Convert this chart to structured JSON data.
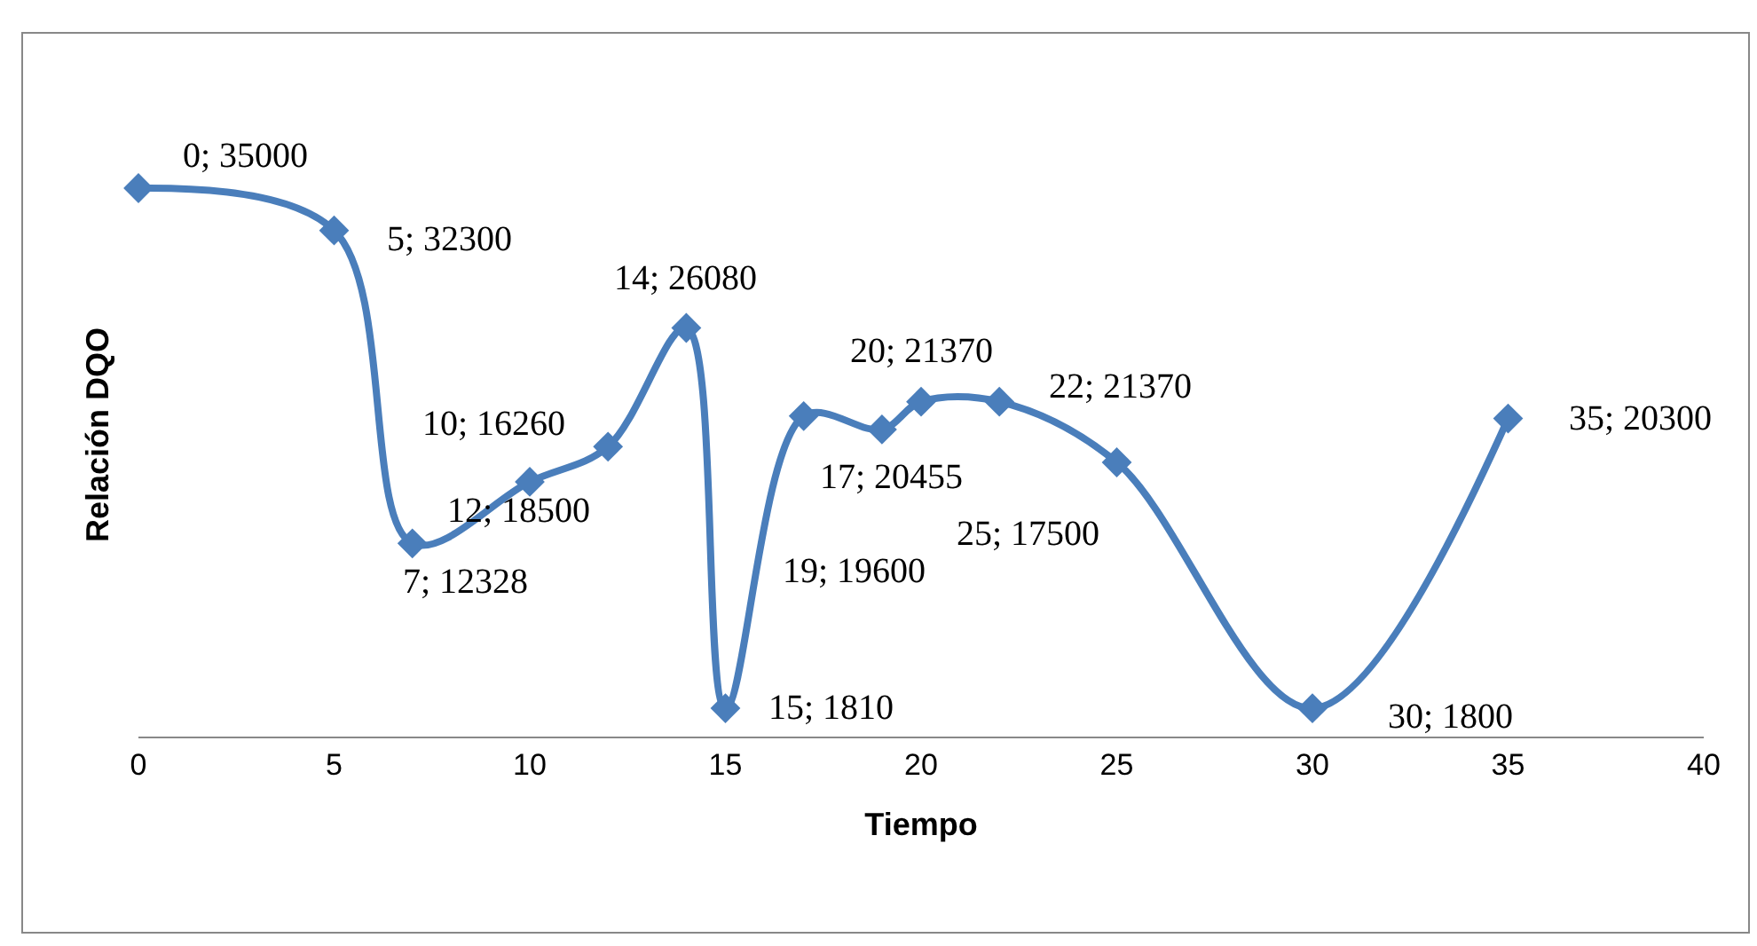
{
  "chart_data": {
    "type": "line",
    "xlabel": "Tiempo",
    "ylabel": "Relación DQO",
    "x": [
      0,
      5,
      7,
      10,
      12,
      14,
      15,
      17,
      19,
      20,
      22,
      25,
      30,
      35
    ],
    "series": [
      {
        "color": "#4a7ebb",
        "values": [
          35000,
          32300,
          12328,
          16260,
          18500,
          26080,
          1810,
          20455,
          19600,
          21370,
          21370,
          17500,
          1800,
          20300
        ],
        "value_labels": [
          "0; 35000",
          "5; 32300",
          "7; 12328",
          "10; 16260",
          "12; 18500",
          "14; 26080",
          "15; 1810",
          "17; 20455",
          "19; 19600",
          "20; 21370",
          "22; 21370",
          "25; 17500",
          "30; 1800",
          "35; 20300"
        ]
      }
    ],
    "xlim": [
      0,
      40
    ],
    "xticks": [
      0,
      5,
      10,
      15,
      20,
      25,
      30,
      35,
      40
    ],
    "tick_labels": "x",
    "grid": false,
    "legend": false,
    "marker": "diamond",
    "line_style": "solid"
  }
}
